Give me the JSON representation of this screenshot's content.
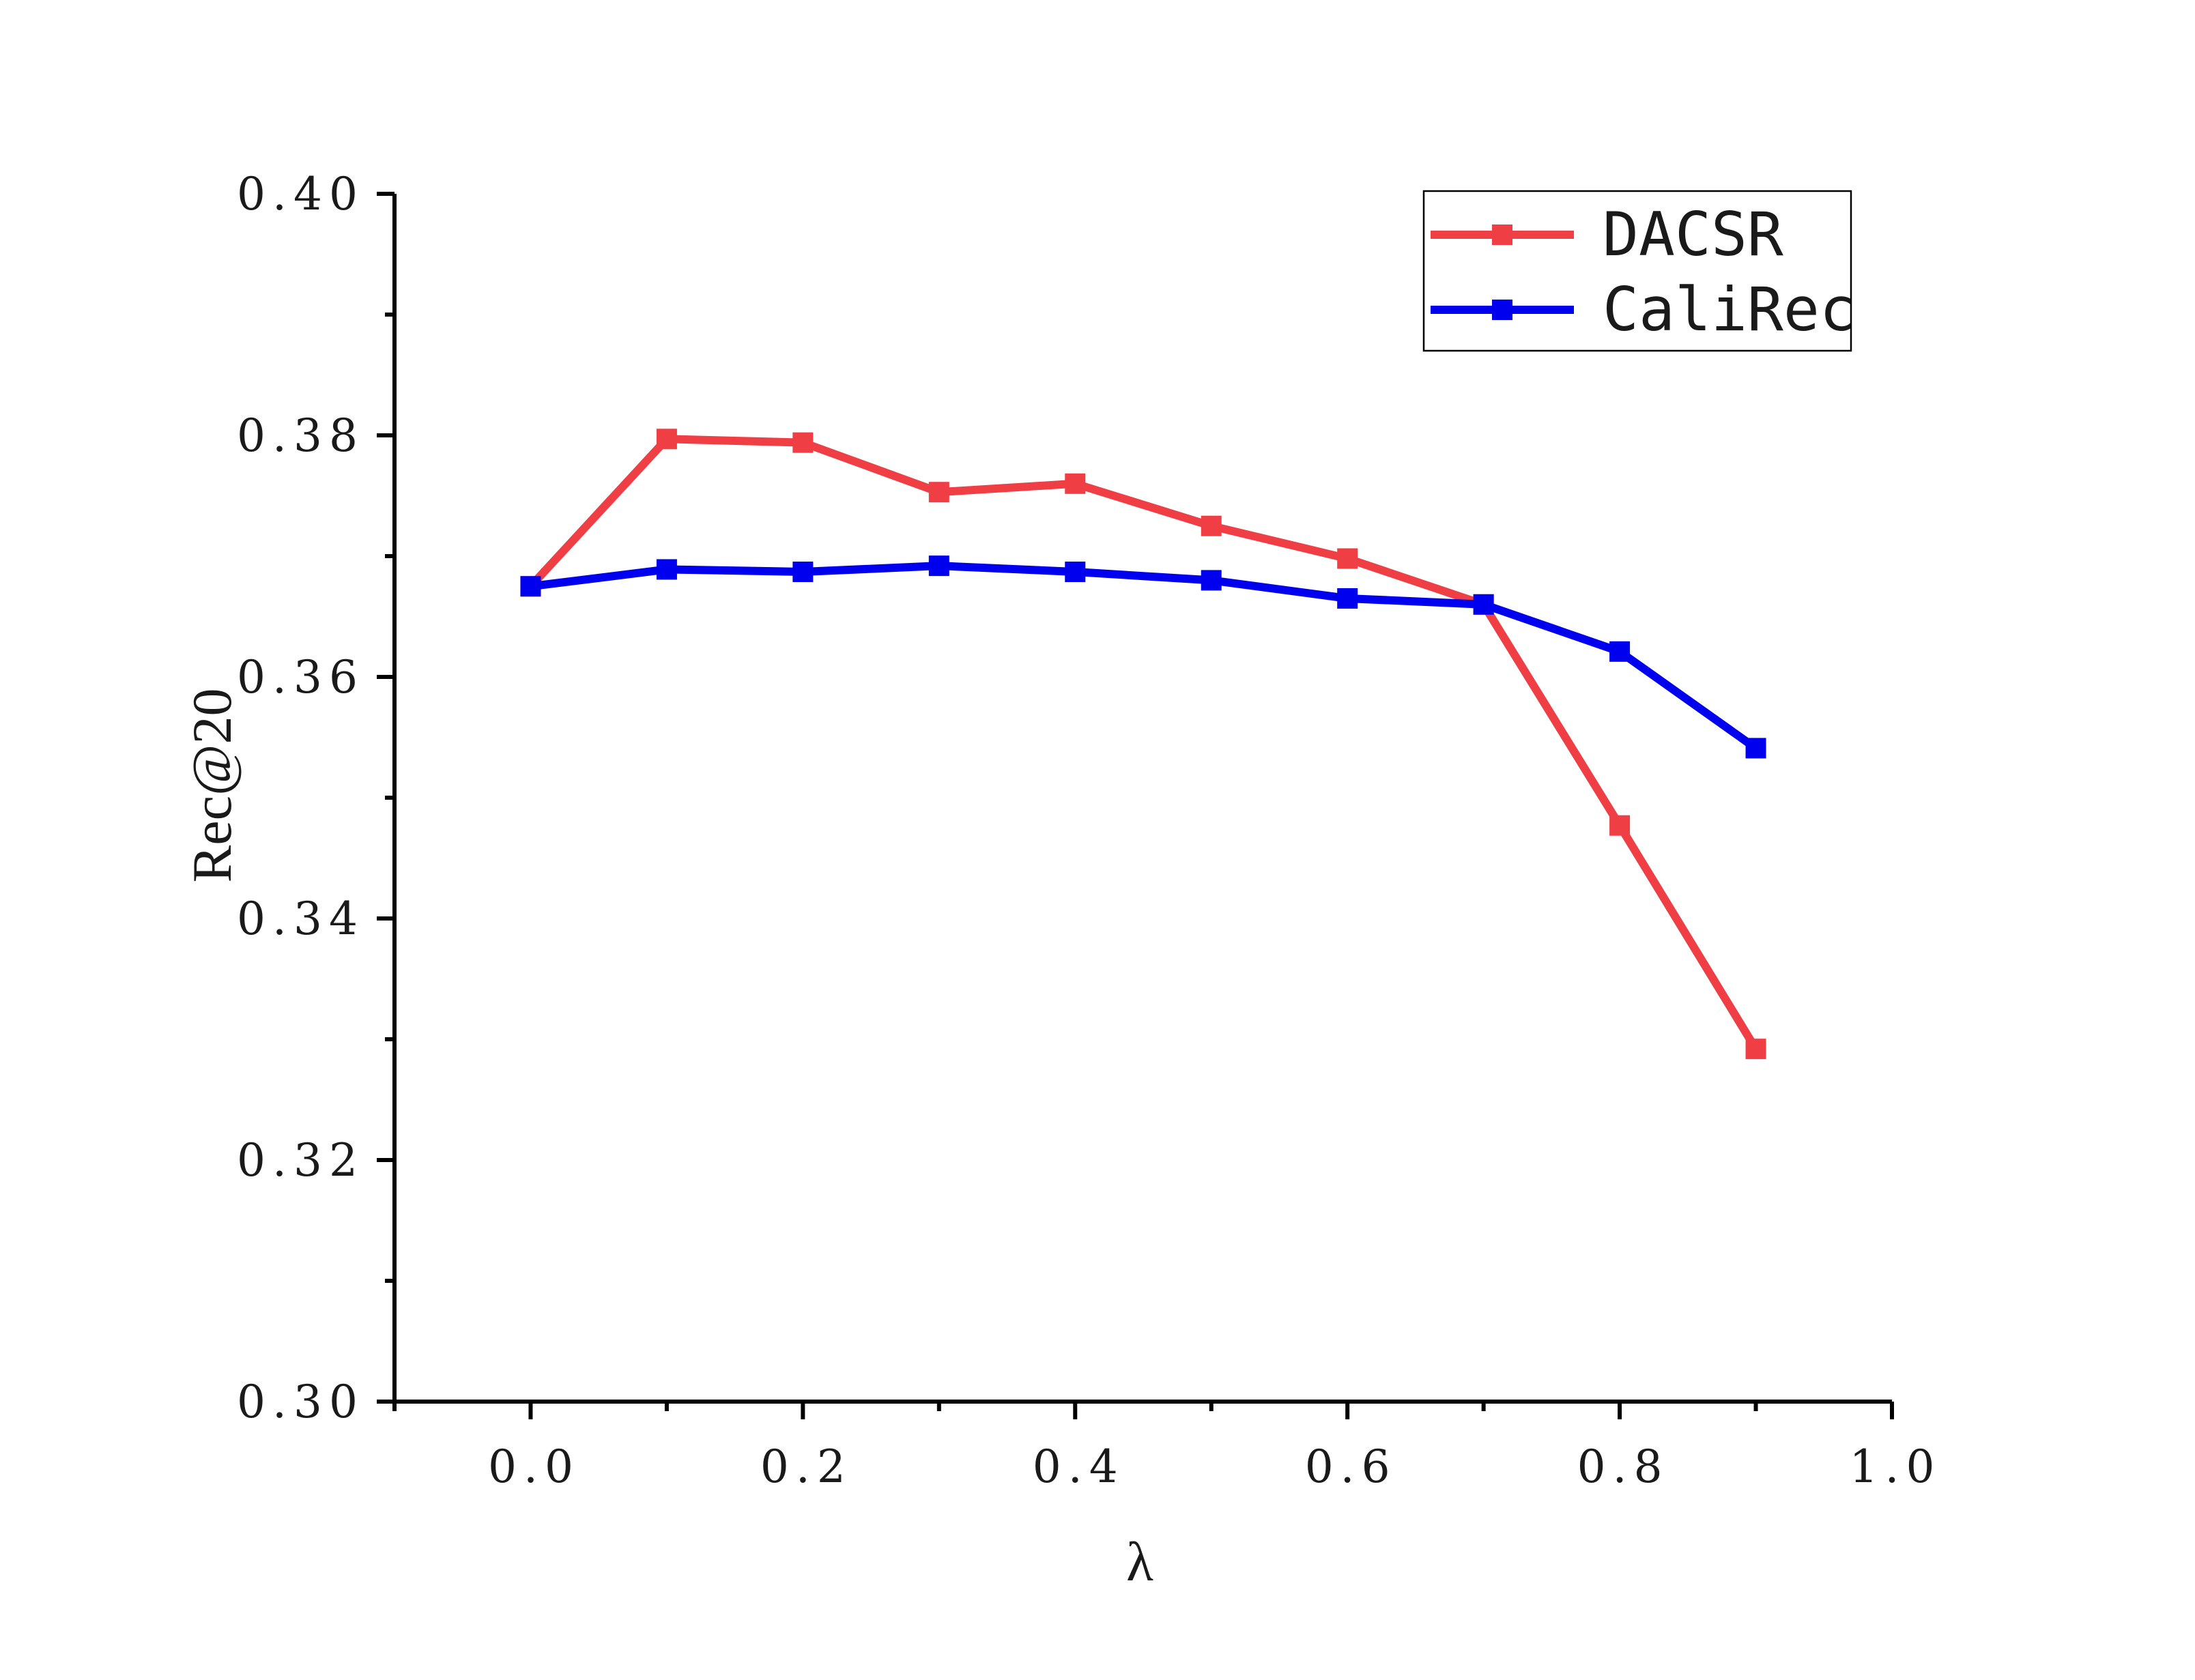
{
  "chart_data": {
    "type": "line",
    "title": "",
    "xlabel": "λ",
    "ylabel": "Rec@20",
    "xlim": [
      -0.1,
      1.0
    ],
    "ylim": [
      0.3,
      0.4
    ],
    "x_ticks": [
      "0.0",
      "0.2",
      "0.4",
      "0.6",
      "0.8",
      "1.0"
    ],
    "y_ticks": [
      "0.30",
      "0.32",
      "0.34",
      "0.36",
      "0.38",
      "0.40"
    ],
    "grid": false,
    "legend_position": "top-right",
    "x": [
      0.0,
      0.1,
      0.2,
      0.3,
      0.4,
      0.5,
      0.6,
      0.7,
      0.8,
      0.9
    ],
    "series": [
      {
        "name": "DACSR",
        "color": "#ef3f45",
        "marker": "square",
        "values": [
          0.3675,
          0.3797,
          0.3794,
          0.3753,
          0.376,
          0.3725,
          0.3698,
          0.366,
          0.3477,
          0.3292
        ]
      },
      {
        "name": "CaliRec",
        "color": "#0000ef",
        "marker": "square",
        "values": [
          0.3675,
          0.3689,
          0.3687,
          0.3692,
          0.3687,
          0.368,
          0.3665,
          0.366,
          0.3621,
          0.3541
        ]
      }
    ]
  }
}
